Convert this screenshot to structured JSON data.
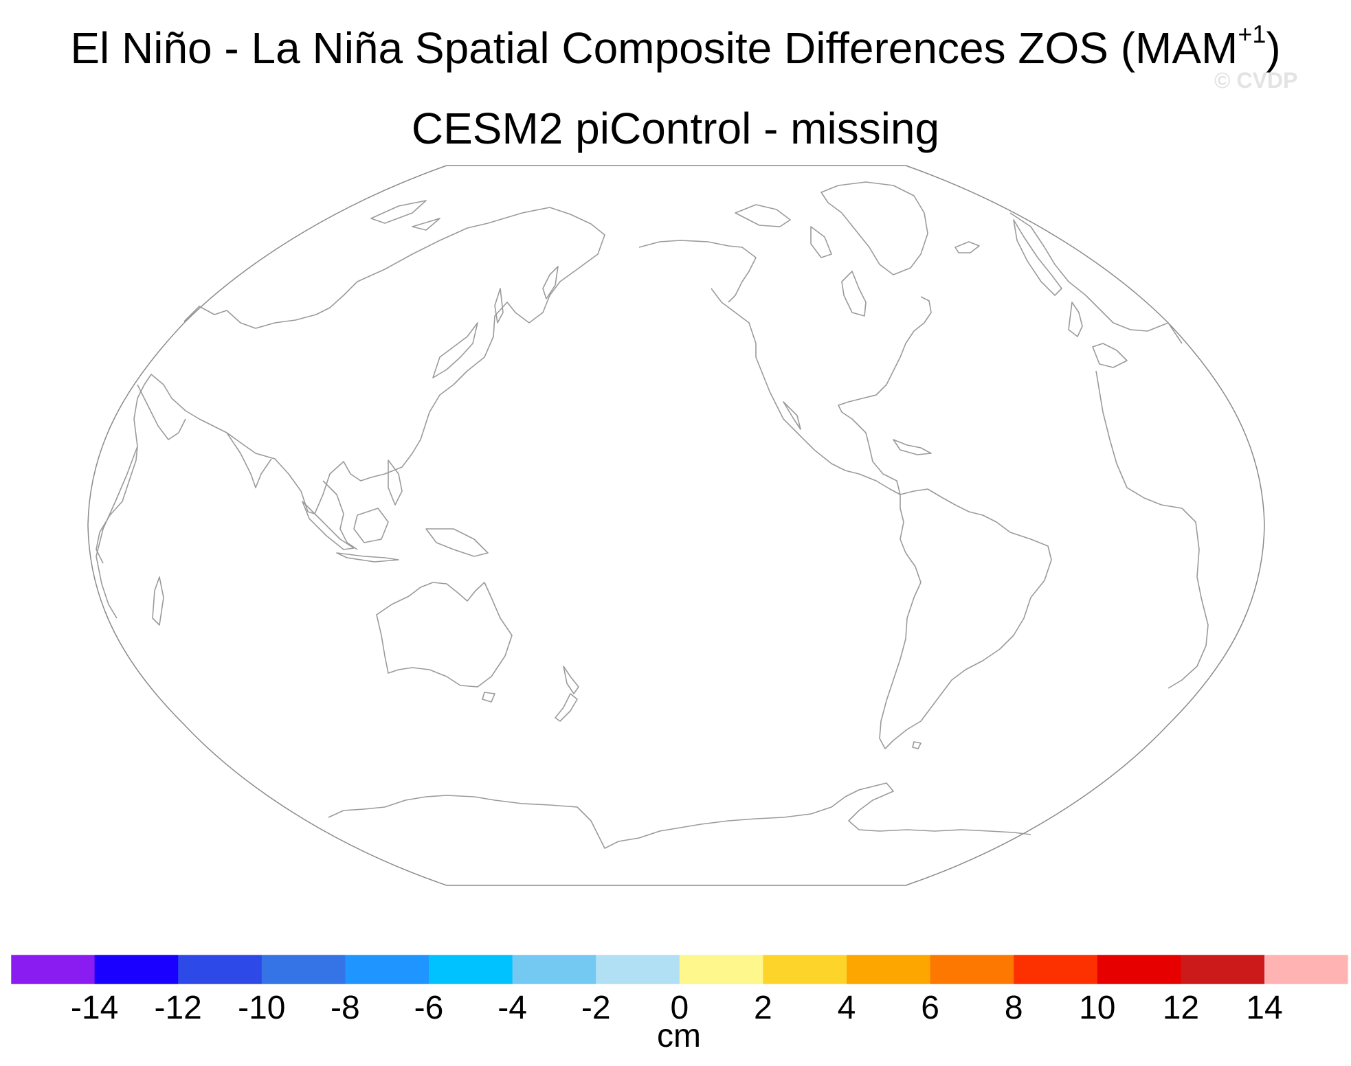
{
  "title": {
    "main": "El Niño - La Niña Spatial Composite Differences ZOS (MAM",
    "superscript": "+1",
    "close": ")",
    "subtitle": "CESM2 piControl - missing"
  },
  "watermark": "© CVDP",
  "map": {
    "projection": "Robinson",
    "central_longitude": 200,
    "coastline_color": "#9a9a9a",
    "border_color": "#8a8a8a"
  },
  "colorbar": {
    "unit_label": "cm",
    "tick_labels": [
      "-14",
      "-12",
      "-10",
      "-8",
      "-6",
      "-4",
      "-2",
      "0",
      "2",
      "4",
      "6",
      "8",
      "10",
      "12",
      "14"
    ],
    "colors": [
      "#8a1cf2",
      "#1a00ff",
      "#2d49e8",
      "#3474e6",
      "#1e95ff",
      "#00c2ff",
      "#74c9f2",
      "#b1e0f4",
      "#fdf78c",
      "#fdd42a",
      "#fda600",
      "#fd7800",
      "#fd3000",
      "#e60000",
      "#cc1a1a",
      "#ffb3b3"
    ]
  }
}
